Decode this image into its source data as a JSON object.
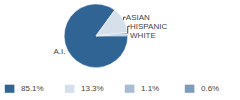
{
  "chart_data": {
    "type": "pie",
    "categories": [
      "A.I.",
      "ASIAN",
      "HISPANIC",
      "WHITE"
    ],
    "values": [
      85.1,
      13.3,
      1.1,
      0.6
    ],
    "value_labels": [
      "85.1%",
      "13.3%",
      "1.1%",
      "0.6%"
    ],
    "colors": [
      "#2f6495",
      "#d5e0ea",
      "#a9bdd2",
      "#7d9bbb"
    ]
  }
}
